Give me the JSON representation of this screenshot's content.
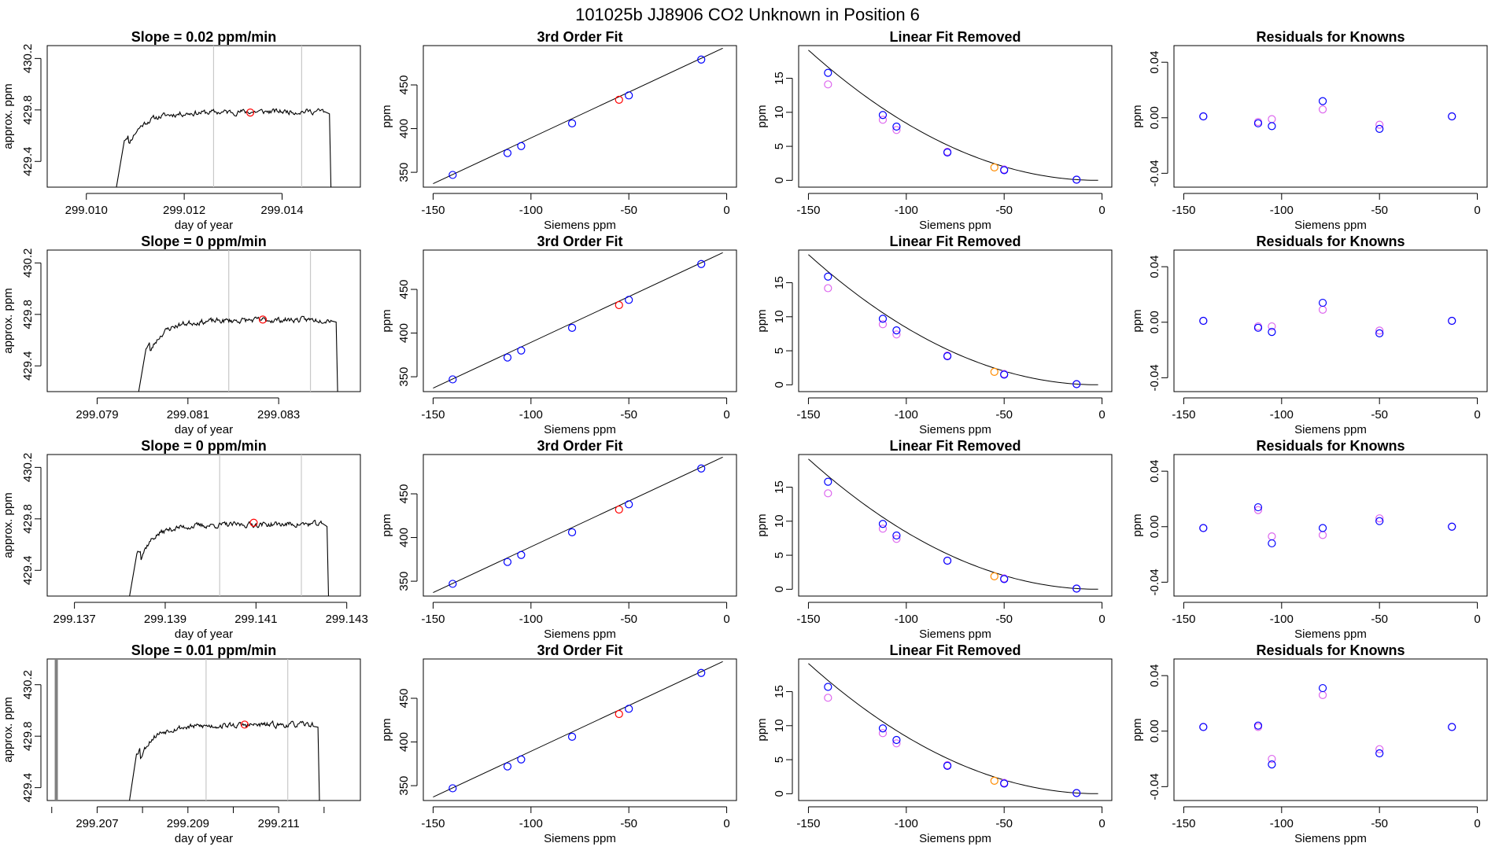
{
  "figure": {
    "title": "101025b      JJ8906    CO2 Unknown in Position  6",
    "colors": {
      "axis": "#000000",
      "trace": "#000000",
      "vline": "#c8c8c8",
      "red": "#ff0000",
      "blue": "#0000ff",
      "violet": "#dd66ee",
      "orange": "#ff8c00"
    }
  },
  "chart_data": [
    {
      "type": "line",
      "title": "Slope =  0.02  ppm/min",
      "xlabel": "day of year",
      "ylabel": "approx. ppm",
      "xlim": [
        299.0092,
        299.0156
      ],
      "ylim": [
        429.2,
        430.3
      ],
      "xticks": [
        299.01,
        299.012,
        299.014
      ],
      "xtick_labels": [
        "299.010",
        "299.012",
        "299.014"
      ],
      "yticks": [
        429.4,
        429.8,
        430.2
      ],
      "ytick_labels": [
        "429.4",
        "429.8",
        "430.2"
      ],
      "vlines": [
        299.0126,
        299.0144
      ],
      "trace_start": 299.0106,
      "trace_end": 299.015,
      "plateau": 429.79,
      "seed": 11,
      "mean_point": {
        "x": 299.01335,
        "y": 429.78
      }
    },
    {
      "type": "scatter",
      "title": "3rd Order Fit",
      "xlabel": "Siemens ppm",
      "ylabel": "ppm",
      "xlim": [
        -155,
        5
      ],
      "ylim": [
        333,
        495
      ],
      "xticks": [
        -150,
        -100,
        -50,
        0
      ],
      "xtick_labels": [
        "-150",
        "-100",
        "-50",
        "0"
      ],
      "yticks": [
        350,
        400,
        450
      ],
      "ytick_labels": [
        "350",
        "400",
        "450"
      ],
      "fit_line": {
        "x": [
          -150,
          -2
        ],
        "y": [
          337,
          492
        ]
      },
      "known_points": {
        "x": [
          -140,
          -112,
          -105,
          -79,
          -50,
          -13
        ],
        "y": [
          347,
          372,
          380,
          406,
          438,
          479
        ]
      },
      "unknown_point": {
        "x": -55,
        "y": 433
      }
    },
    {
      "type": "scatter",
      "title": "Linear Fit Removed",
      "xlabel": "Siemens ppm",
      "ylabel": "ppm",
      "xlim": [
        -155,
        5
      ],
      "ylim": [
        -1,
        19.8
      ],
      "xticks": [
        -150,
        -100,
        -50,
        0
      ],
      "xtick_labels": [
        "-150",
        "-100",
        "-50",
        "0"
      ],
      "yticks": [
        0,
        5,
        10,
        15
      ],
      "ytick_labels": [
        "0",
        "5",
        "10",
        "15"
      ],
      "fit_curve": {
        "x0": -150,
        "x1": -2,
        "a": 0.000874,
        "vertex": -2
      },
      "blue_points": {
        "x": [
          -140,
          -112,
          -105,
          -79,
          -50,
          -13
        ],
        "y": [
          15.8,
          9.6,
          7.9,
          4.1,
          1.5,
          0.1
        ]
      },
      "violet_points": {
        "x": [
          -140,
          -112,
          -105,
          -79,
          -50,
          -13
        ],
        "y": [
          14.1,
          8.9,
          7.4,
          4.2,
          1.6,
          0.1
        ]
      },
      "unknown_point": {
        "x": -55,
        "y": 1.9
      }
    },
    {
      "type": "scatter",
      "title": "Residuals for Knowns",
      "xlabel": "Siemens ppm",
      "ylabel": "ppm",
      "xlim": [
        -155,
        5
      ],
      "ylim": [
        -0.05,
        0.052
      ],
      "xticks": [
        -150,
        -100,
        -50,
        0
      ],
      "xtick_labels": [
        "-150",
        "-100",
        "-50",
        "0"
      ],
      "yticks": [
        -0.04,
        0.0,
        0.04
      ],
      "ytick_labels": [
        "-0.04",
        "0.00",
        "0.04"
      ],
      "blue_points": {
        "x": [
          -140,
          -112,
          -105,
          -79,
          -50,
          -13
        ],
        "y": [
          0.001,
          -0.004,
          -0.006,
          0.012,
          -0.008,
          0.001
        ]
      },
      "violet_points": {
        "x": [
          -140,
          -112,
          -105,
          -79,
          -50,
          -13
        ],
        "y": [
          0.001,
          -0.003,
          -0.001,
          0.006,
          -0.005,
          0.001
        ]
      }
    },
    {
      "type": "line",
      "title": "Slope =  0  ppm/min",
      "xlabel": "day of year",
      "ylabel": "approx. ppm",
      "xlim": [
        299.0779,
        299.0848
      ],
      "ylim": [
        429.2,
        430.3
      ],
      "xticks": [
        299.079,
        299.081,
        299.083
      ],
      "xtick_labels": [
        "299.079",
        "299.081",
        "299.083"
      ],
      "yticks": [
        429.4,
        429.8,
        430.2
      ],
      "ytick_labels": [
        "429.4",
        "429.8",
        "430.2"
      ],
      "vlines": [
        299.0819,
        299.0837
      ],
      "trace_start": 299.0799,
      "trace_end": 299.0843,
      "plateau": 429.76,
      "seed": 23,
      "mean_point": {
        "x": 299.08265,
        "y": 429.76
      }
    },
    {
      "type": "scatter",
      "title": "3rd Order Fit",
      "xlabel": "Siemens ppm",
      "ylabel": "ppm",
      "xlim": [
        -155,
        5
      ],
      "ylim": [
        333,
        495
      ],
      "xticks": [
        -150,
        -100,
        -50,
        0
      ],
      "xtick_labels": [
        "-150",
        "-100",
        "-50",
        "0"
      ],
      "yticks": [
        350,
        400,
        450
      ],
      "ytick_labels": [
        "350",
        "400",
        "450"
      ],
      "fit_line": {
        "x": [
          -150,
          -2
        ],
        "y": [
          337,
          492
        ]
      },
      "known_points": {
        "x": [
          -140,
          -112,
          -105,
          -79,
          -50,
          -13
        ],
        "y": [
          347,
          372,
          380,
          406,
          438,
          479
        ]
      },
      "unknown_point": {
        "x": -55,
        "y": 432
      }
    },
    {
      "type": "scatter",
      "title": "Linear Fit Removed",
      "xlabel": "Siemens ppm",
      "ylabel": "ppm",
      "xlim": [
        -155,
        5
      ],
      "ylim": [
        -1,
        19.8
      ],
      "xticks": [
        -150,
        -100,
        -50,
        0
      ],
      "xtick_labels": [
        "-150",
        "-100",
        "-50",
        "0"
      ],
      "yticks": [
        0,
        5,
        10,
        15
      ],
      "ytick_labels": [
        "0",
        "5",
        "10",
        "15"
      ],
      "fit_curve": {
        "x0": -150,
        "x1": -2,
        "a": 0.000874,
        "vertex": -2
      },
      "blue_points": {
        "x": [
          -140,
          -112,
          -105,
          -79,
          -50,
          -13
        ],
        "y": [
          15.9,
          9.7,
          8.0,
          4.2,
          1.5,
          0.1
        ]
      },
      "violet_points": {
        "x": [
          -140,
          -112,
          -105,
          -79,
          -50,
          -13
        ],
        "y": [
          14.2,
          8.9,
          7.4,
          4.3,
          1.6,
          0.1
        ]
      },
      "unknown_point": {
        "x": -55,
        "y": 1.9
      }
    },
    {
      "type": "scatter",
      "title": "Residuals for Knowns",
      "xlabel": "Siemens ppm",
      "ylabel": "ppm",
      "xlim": [
        -155,
        5
      ],
      "ylim": [
        -0.05,
        0.052
      ],
      "xticks": [
        -150,
        -100,
        -50,
        0
      ],
      "xtick_labels": [
        "-150",
        "-100",
        "-50",
        "0"
      ],
      "yticks": [
        -0.04,
        0.0,
        0.04
      ],
      "ytick_labels": [
        "-0.04",
        "0.00",
        "0.04"
      ],
      "blue_points": {
        "x": [
          -140,
          -112,
          -105,
          -79,
          -50,
          -13
        ],
        "y": [
          0.001,
          -0.004,
          -0.007,
          0.014,
          -0.008,
          0.001
        ]
      },
      "violet_points": {
        "x": [
          -140,
          -112,
          -105,
          -79,
          -50,
          -13
        ],
        "y": [
          0.001,
          -0.003,
          -0.003,
          0.009,
          -0.006,
          0.001
        ]
      }
    },
    {
      "type": "line",
      "title": "Slope =  0  ppm/min",
      "xlabel": "day of year",
      "ylabel": "approx. ppm",
      "xlim": [
        299.1364,
        299.1433
      ],
      "ylim": [
        429.2,
        430.3
      ],
      "xticks": [
        299.137,
        299.139,
        299.141,
        299.143
      ],
      "xtick_labels": [
        "299.137",
        "299.139",
        "299.141",
        "299.143"
      ],
      "yticks": [
        429.4,
        429.8,
        430.2
      ],
      "ytick_labels": [
        "429.4",
        "429.8",
        "430.2"
      ],
      "vlines": [
        299.1402,
        299.142
      ],
      "trace_start": 299.1382,
      "trace_end": 299.1426,
      "plateau": 429.76,
      "seed": 37,
      "mean_point": {
        "x": 299.14095,
        "y": 429.77
      }
    },
    {
      "type": "scatter",
      "title": "3rd Order Fit",
      "xlabel": "Siemens ppm",
      "ylabel": "ppm",
      "xlim": [
        -155,
        5
      ],
      "ylim": [
        333,
        495
      ],
      "xticks": [
        -150,
        -100,
        -50,
        0
      ],
      "xtick_labels": [
        "-150",
        "-100",
        "-50",
        "0"
      ],
      "yticks": [
        350,
        400,
        450
      ],
      "ytick_labels": [
        "350",
        "400",
        "450"
      ],
      "fit_line": {
        "x": [
          -150,
          -2
        ],
        "y": [
          337,
          492
        ]
      },
      "known_points": {
        "x": [
          -140,
          -112,
          -105,
          -79,
          -50,
          -13
        ],
        "y": [
          347,
          372,
          380,
          406,
          438,
          479
        ]
      },
      "unknown_point": {
        "x": -55,
        "y": 432
      }
    },
    {
      "type": "scatter",
      "title": "Linear Fit Removed",
      "xlabel": "Siemens ppm",
      "ylabel": "ppm",
      "xlim": [
        -155,
        5
      ],
      "ylim": [
        -1,
        19.8
      ],
      "xticks": [
        -150,
        -100,
        -50,
        0
      ],
      "xtick_labels": [
        "-150",
        "-100",
        "-50",
        "0"
      ],
      "yticks": [
        0,
        5,
        10,
        15
      ],
      "ytick_labels": [
        "0",
        "5",
        "10",
        "15"
      ],
      "fit_curve": {
        "x0": -150,
        "x1": -2,
        "a": 0.000874,
        "vertex": -2
      },
      "blue_points": {
        "x": [
          -140,
          -112,
          -105,
          -79,
          -50,
          -13
        ],
        "y": [
          15.8,
          9.6,
          7.9,
          4.2,
          1.5,
          0.1
        ]
      },
      "violet_points": {
        "x": [
          -140,
          -112,
          -105,
          -79,
          -50,
          -13
        ],
        "y": [
          14.1,
          8.9,
          7.4,
          4.2,
          1.6,
          0.1
        ]
      },
      "unknown_point": {
        "x": -55,
        "y": 1.9
      }
    },
    {
      "type": "scatter",
      "title": "Residuals for Knowns",
      "xlabel": "Siemens ppm",
      "ylabel": "ppm",
      "xlim": [
        -155,
        5
      ],
      "ylim": [
        -0.05,
        0.052
      ],
      "xticks": [
        -150,
        -100,
        -50,
        0
      ],
      "xtick_labels": [
        "-150",
        "-100",
        "-50",
        "0"
      ],
      "yticks": [
        -0.04,
        0.0,
        0.04
      ],
      "ytick_labels": [
        "-0.04",
        "0.00",
        "0.04"
      ],
      "blue_points": {
        "x": [
          -140,
          -112,
          -105,
          -79,
          -50,
          -13
        ],
        "y": [
          -0.001,
          0.014,
          -0.012,
          -0.001,
          0.004,
          0.0
        ]
      },
      "violet_points": {
        "x": [
          -140,
          -112,
          -105,
          -79,
          -50,
          -13
        ],
        "y": [
          -0.001,
          0.012,
          -0.007,
          -0.006,
          0.006,
          0.0
        ]
      }
    },
    {
      "type": "line",
      "title": "Slope =  0.01  ppm/min",
      "xlabel": "day of year",
      "ylabel": "approx. ppm",
      "xlim": [
        299.2059,
        299.2128
      ],
      "ylim": [
        429.3,
        430.4
      ],
      "xticks": [
        299.207,
        299.209,
        299.211
      ],
      "xtick_labels": [
        "299.207",
        "299.209",
        "299.211"
      ],
      "yticks": [
        429.4,
        429.8,
        430.2
      ],
      "ytick_labels": [
        "429.4",
        "429.8",
        "430.2"
      ],
      "minor_xticks": [
        299.206,
        299.208,
        299.21,
        299.212
      ],
      "vlines": [
        299.2094,
        299.2112
      ],
      "thick_vlines": [
        299.2061
      ],
      "trace_start": 299.2077,
      "trace_end": 299.2119,
      "plateau": 429.89,
      "seed": 53,
      "mean_point": {
        "x": 299.21025,
        "y": 429.89
      }
    },
    {
      "type": "scatter",
      "title": "3rd Order Fit",
      "xlabel": "Siemens ppm",
      "ylabel": "ppm",
      "xlim": [
        -155,
        5
      ],
      "ylim": [
        333,
        495
      ],
      "xticks": [
        -150,
        -100,
        -50,
        0
      ],
      "xtick_labels": [
        "-150",
        "-100",
        "-50",
        "0"
      ],
      "yticks": [
        350,
        400,
        450
      ],
      "ytick_labels": [
        "350",
        "400",
        "450"
      ],
      "fit_line": {
        "x": [
          -150,
          -2
        ],
        "y": [
          337,
          492
        ]
      },
      "known_points": {
        "x": [
          -140,
          -112,
          -105,
          -79,
          -50,
          -13
        ],
        "y": [
          347,
          372,
          380,
          406,
          438,
          479
        ]
      },
      "unknown_point": {
        "x": -55,
        "y": 432
      }
    },
    {
      "type": "scatter",
      "title": "Linear Fit Removed",
      "xlabel": "Siemens ppm",
      "ylabel": "ppm",
      "xlim": [
        -155,
        5
      ],
      "ylim": [
        -1,
        19.8
      ],
      "xticks": [
        -150,
        -100,
        -50,
        0
      ],
      "xtick_labels": [
        "-150",
        "-100",
        "-50",
        "0"
      ],
      "yticks": [
        0,
        5,
        10,
        15
      ],
      "ytick_labels": [
        "0",
        "5",
        "10",
        "15"
      ],
      "fit_curve": {
        "x0": -150,
        "x1": -2,
        "a": 0.000874,
        "vertex": -2
      },
      "blue_points": {
        "x": [
          -140,
          -112,
          -105,
          -79,
          -50,
          -13
        ],
        "y": [
          15.7,
          9.6,
          7.9,
          4.1,
          1.5,
          0.1
        ]
      },
      "violet_points": {
        "x": [
          -140,
          -112,
          -105,
          -79,
          -50,
          -13
        ],
        "y": [
          14.1,
          8.9,
          7.4,
          4.2,
          1.6,
          0.1
        ]
      },
      "unknown_point": {
        "x": -55,
        "y": 1.9
      }
    },
    {
      "type": "scatter",
      "title": "Residuals for Knowns",
      "xlabel": "Siemens ppm",
      "ylabel": "ppm",
      "xlim": [
        -155,
        5
      ],
      "ylim": [
        -0.05,
        0.052
      ],
      "xticks": [
        -150,
        -100,
        -50,
        0
      ],
      "xtick_labels": [
        "-150",
        "-100",
        "-50",
        "0"
      ],
      "yticks": [
        -0.04,
        0.0,
        0.04
      ],
      "ytick_labels": [
        "-0.04",
        "0.00",
        "0.04"
      ],
      "blue_points": {
        "x": [
          -140,
          -112,
          -105,
          -79,
          -50,
          -13
        ],
        "y": [
          0.003,
          0.004,
          -0.024,
          0.031,
          -0.016,
          0.003
        ]
      },
      "violet_points": {
        "x": [
          -140,
          -112,
          -105,
          -79,
          -50,
          -13
        ],
        "y": [
          0.003,
          0.003,
          -0.02,
          0.026,
          -0.013,
          0.003
        ]
      }
    }
  ]
}
